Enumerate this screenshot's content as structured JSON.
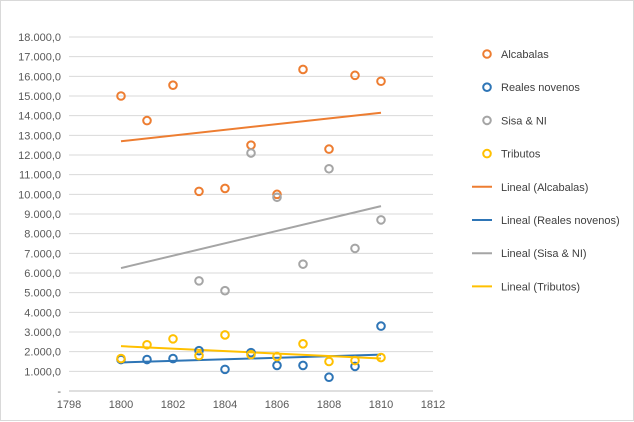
{
  "chart_data": {
    "type": "scatter",
    "title": "",
    "xlabel": "",
    "ylabel": "",
    "xlim": [
      1798,
      1812
    ],
    "ylim": [
      0,
      18000
    ],
    "x_ticks": [
      1798,
      1800,
      1802,
      1804,
      1806,
      1808,
      1810,
      1812
    ],
    "y_ticks": [
      0,
      1000,
      2000,
      3000,
      4000,
      5000,
      6000,
      7000,
      8000,
      9000,
      10000,
      11000,
      12000,
      13000,
      14000,
      15000,
      16000,
      17000,
      18000
    ],
    "y_tick_labels": [
      "-",
      "1.000,0",
      "2.000,0",
      "3.000,0",
      "4.000,0",
      "5.000,0",
      "6.000,0",
      "7.000,0",
      "8.000,0",
      "9.000,0",
      "10.000,0",
      "11.000,0",
      "12.000,0",
      "13.000,0",
      "14.000,0",
      "15.000,0",
      "16.000,0",
      "17.000,0",
      "18.000,0"
    ],
    "grid": "horizontal",
    "legend_position": "right",
    "series": [
      {
        "name": "Alcabalas",
        "color": "#ED7D31",
        "points": [
          [
            1800,
            15000
          ],
          [
            1801,
            13750
          ],
          [
            1802,
            15550
          ],
          [
            1803,
            10150
          ],
          [
            1804,
            10300
          ],
          [
            1805,
            12500
          ],
          [
            1806,
            10000
          ],
          [
            1807,
            16350
          ],
          [
            1808,
            12300
          ],
          [
            1809,
            16050
          ],
          [
            1810,
            15750
          ]
        ]
      },
      {
        "name": "Reales novenos",
        "color": "#2E75B6",
        "points": [
          [
            1800,
            1600
          ],
          [
            1801,
            1600
          ],
          [
            1802,
            1650
          ],
          [
            1803,
            2050
          ],
          [
            1804,
            1100
          ],
          [
            1805,
            1950
          ],
          [
            1806,
            1300
          ],
          [
            1807,
            1300
          ],
          [
            1808,
            700
          ],
          [
            1809,
            1250
          ],
          [
            1810,
            3300
          ]
        ]
      },
      {
        "name": "Sisa & NI",
        "color": "#A5A5A5",
        "points": [
          [
            1803,
            5600
          ],
          [
            1804,
            5100
          ],
          [
            1805,
            12100
          ],
          [
            1806,
            9850
          ],
          [
            1807,
            6450
          ],
          [
            1808,
            11300
          ],
          [
            1809,
            7250
          ],
          [
            1810,
            8700
          ]
        ]
      },
      {
        "name": "Tributos",
        "color": "#FFC000",
        "points": [
          [
            1800,
            1650
          ],
          [
            1801,
            2350
          ],
          [
            1802,
            2650
          ],
          [
            1803,
            1800
          ],
          [
            1804,
            2850
          ],
          [
            1805,
            1850
          ],
          [
            1806,
            1750
          ],
          [
            1807,
            2400
          ],
          [
            1808,
            1500
          ],
          [
            1809,
            1550
          ],
          [
            1810,
            1700
          ]
        ]
      }
    ],
    "trendlines": [
      {
        "name": "Lineal (Alcabalas)",
        "color": "#ED7D31",
        "x": [
          1800,
          1810
        ],
        "y": [
          12700,
          14150
        ]
      },
      {
        "name": "Lineal (Reales novenos)",
        "color": "#2E75B6",
        "x": [
          1800,
          1810
        ],
        "y": [
          1450,
          1850
        ]
      },
      {
        "name": "Lineal (Sisa & NI)",
        "color": "#A5A5A5",
        "x": [
          1800,
          1810
        ],
        "y": [
          6250,
          9400
        ]
      },
      {
        "name": "Lineal (Tributos)",
        "color": "#FFC000",
        "x": [
          1800,
          1810
        ],
        "y": [
          2280,
          1650
        ]
      }
    ]
  }
}
